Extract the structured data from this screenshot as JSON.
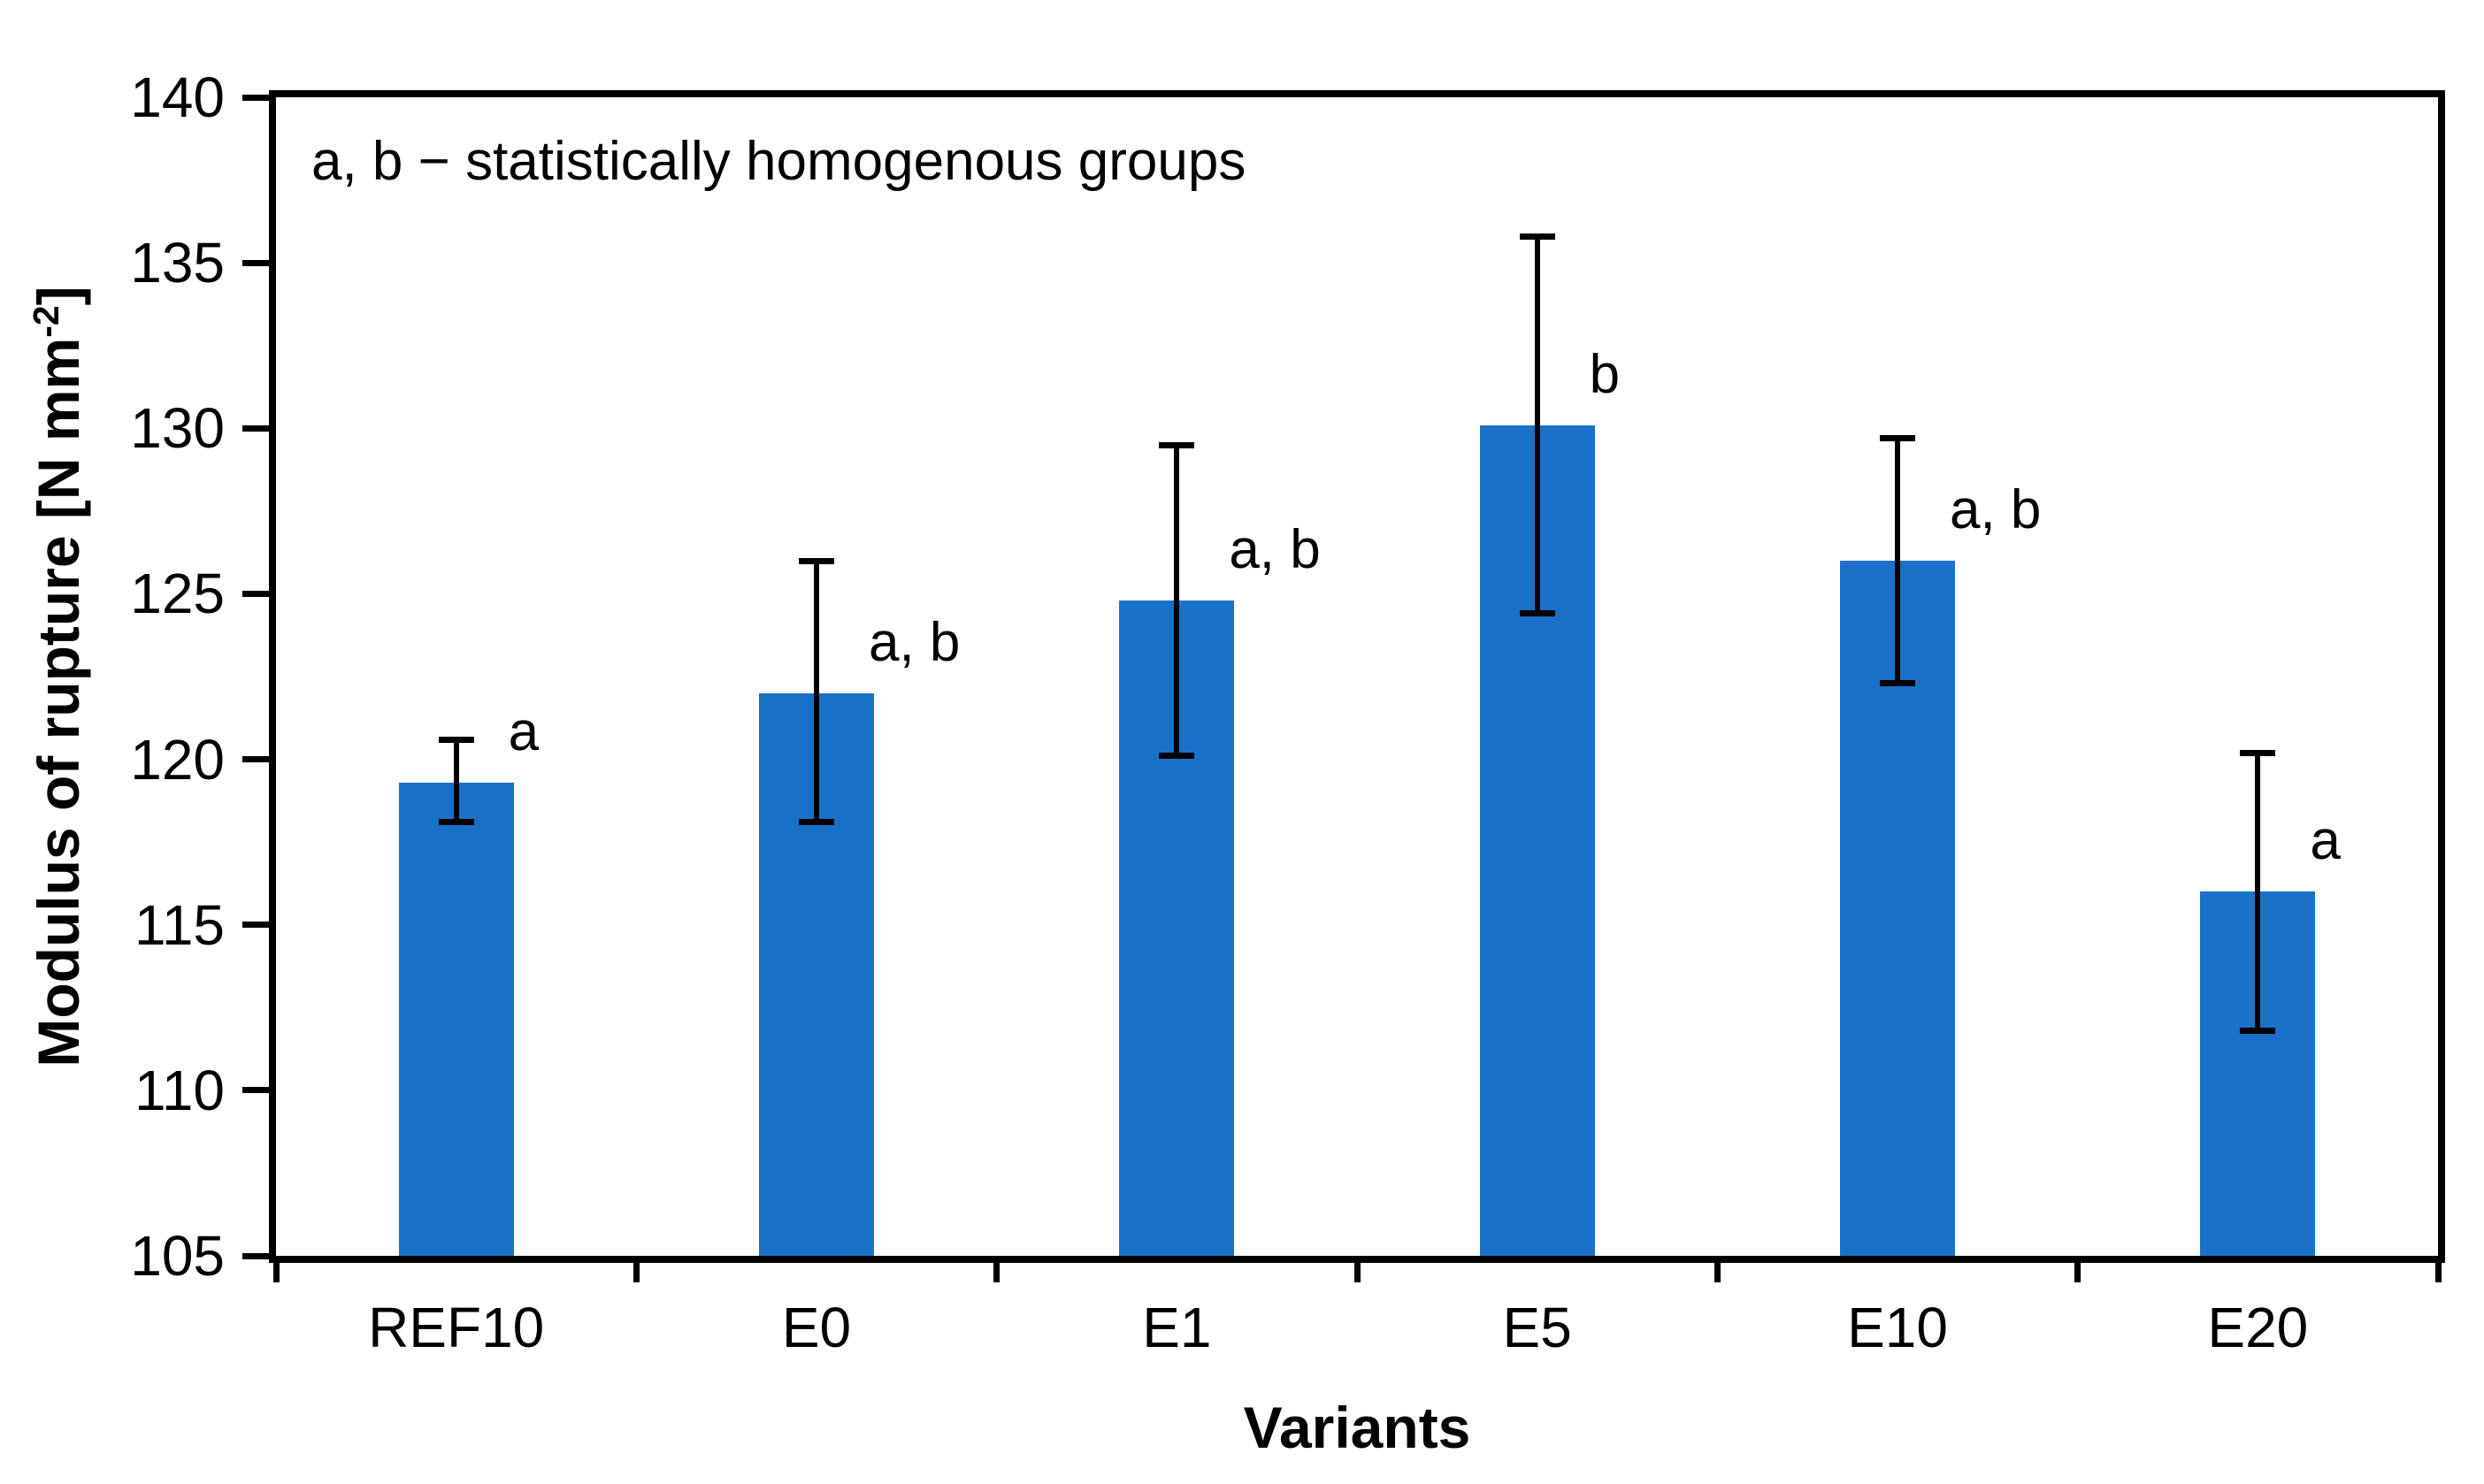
{
  "chart_data": {
    "type": "bar",
    "annotation": "a, b − statistically homogenous groups",
    "xlabel": "Variants",
    "ylabel": {
      "prefix": "Modulus of rupture [N mm",
      "superscript": "-2",
      "suffix": "]"
    },
    "ylim": [
      105,
      140
    ],
    "ytick_values": [
      105,
      110,
      115,
      120,
      125,
      130,
      135,
      140
    ],
    "grid": false,
    "legend": false,
    "bar_color": "#1972C8",
    "axis_color": "#000000",
    "categories": [
      "REF10",
      "E0",
      "E1",
      "E5",
      "E10",
      "E20"
    ],
    "values": [
      119.3,
      122.0,
      124.8,
      130.1,
      126.0,
      116.0
    ],
    "error_plus": [
      1.3,
      4.0,
      4.7,
      5.7,
      3.7,
      4.2
    ],
    "error_minus": [
      1.2,
      3.9,
      4.7,
      5.7,
      3.7,
      4.2
    ],
    "group_labels": [
      "a",
      "a, b",
      "a, b",
      "b",
      "a, b",
      "a"
    ]
  }
}
